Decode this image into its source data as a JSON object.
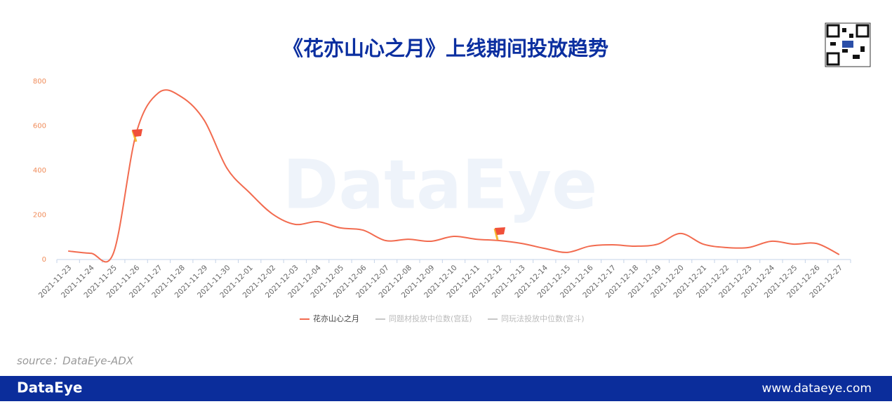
{
  "header": {
    "title": "《花亦山心之月》上线期间投放趋势"
  },
  "chart_data": {
    "type": "line",
    "watermark": "DataEye",
    "categories": [
      "2021-11-23",
      "2021-11-24",
      "2021-11-25",
      "2021-11-26",
      "2021-11-27",
      "2021-11-28",
      "2021-11-29",
      "2021-11-30",
      "2021-12-01",
      "2021-12-02",
      "2021-12-03",
      "2021-12-04",
      "2021-12-05",
      "2021-12-06",
      "2021-12-07",
      "2021-12-08",
      "2021-12-09",
      "2021-12-10",
      "2021-12-11",
      "2021-12-12",
      "2021-12-13",
      "2021-12-14",
      "2021-12-15",
      "2021-12-16",
      "2021-12-17",
      "2021-12-18",
      "2021-12-19",
      "2021-12-20",
      "2021-12-21",
      "2021-12-22",
      "2021-12-23",
      "2021-12-24",
      "2021-12-25",
      "2021-12-26",
      "2021-12-27"
    ],
    "series": [
      {
        "name": "花亦山心之月",
        "color": "#f26b4f",
        "values": [
          38,
          28,
          30,
          567,
          750,
          730,
          625,
          410,
          300,
          205,
          158,
          170,
          142,
          132,
          85,
          91,
          82,
          104,
          91,
          85,
          72,
          50,
          32,
          60,
          66,
          60,
          69,
          117,
          69,
          54,
          54,
          82,
          69,
          72,
          22
        ]
      },
      {
        "name": "同题材投放中位数(宫廷)",
        "color": "#c8c8c8",
        "values": [
          null,
          null,
          null,
          null,
          null,
          null,
          null,
          null,
          null,
          null,
          null,
          null,
          null,
          null,
          null,
          null,
          null,
          null,
          null,
          null,
          null,
          null,
          null,
          null,
          null,
          null,
          null,
          null,
          null,
          null,
          null,
          null,
          null,
          null,
          null
        ]
      },
      {
        "name": "同玩法投放中位数(宫斗)",
        "color": "#c8c8c8",
        "values": [
          null,
          null,
          null,
          null,
          null,
          null,
          null,
          null,
          null,
          null,
          null,
          null,
          null,
          null,
          null,
          null,
          null,
          null,
          null,
          null,
          null,
          null,
          null,
          null,
          null,
          null,
          null,
          null,
          null,
          null,
          null,
          null,
          null,
          null,
          null
        ]
      }
    ],
    "ylim": [
      0,
      800
    ],
    "yticks": [
      0,
      200,
      400,
      600,
      800
    ],
    "grid": false
  },
  "source": "source：DataEye-ADX",
  "footer": {
    "brand": "DataEye",
    "url": "www.dataeye.com"
  }
}
